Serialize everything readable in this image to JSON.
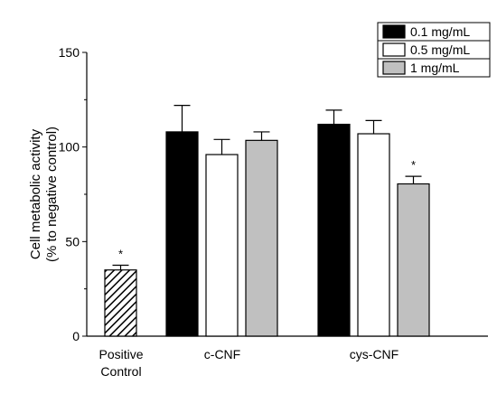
{
  "chart_data": {
    "type": "bar",
    "title": "",
    "ylabel_lines": [
      "Cell metabolic activity",
      "(% to negative control)"
    ],
    "xlabel": "",
    "ylim": [
      0,
      150
    ],
    "yticks": [
      0,
      50,
      100,
      150
    ],
    "grid": false,
    "legend_position": "top-right",
    "groups": [
      {
        "label_lines": [
          "Positive",
          "Control"
        ]
      },
      {
        "label_lines": [
          "c-CNF"
        ]
      },
      {
        "label_lines": [
          "cys-CNF"
        ]
      }
    ],
    "series": [
      {
        "name": "0.1 mg/mL",
        "color": "#000000",
        "pattern": "solid"
      },
      {
        "name": "0.5 mg/mL",
        "color": "#ffffff",
        "pattern": "solid"
      },
      {
        "name": "1 mg/mL",
        "color": "#c0c0c0",
        "pattern": "solid"
      }
    ],
    "bars": [
      {
        "group": 0,
        "series": null,
        "value": 35,
        "error": 2.5,
        "color": "#ffffff",
        "pattern": "hatch",
        "marker": "*"
      },
      {
        "group": 1,
        "series": 0,
        "value": 108,
        "error": 14,
        "marker": ""
      },
      {
        "group": 1,
        "series": 1,
        "value": 96,
        "error": 8,
        "marker": ""
      },
      {
        "group": 1,
        "series": 2,
        "value": 103.5,
        "error": 4.5,
        "marker": ""
      },
      {
        "group": 2,
        "series": 0,
        "value": 112,
        "error": 7.5,
        "marker": ""
      },
      {
        "group": 2,
        "series": 1,
        "value": 107,
        "error": 7,
        "marker": ""
      },
      {
        "group": 2,
        "series": 2,
        "value": 80.5,
        "error": 4,
        "marker": "*"
      }
    ]
  }
}
